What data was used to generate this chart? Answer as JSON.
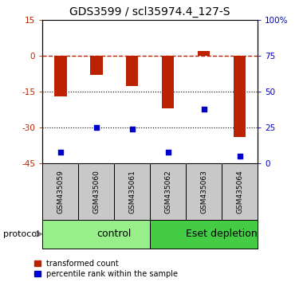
{
  "title": "GDS3599 / scl35974.4_127-S",
  "samples": [
    "GSM435059",
    "GSM435060",
    "GSM435061",
    "GSM435062",
    "GSM435063",
    "GSM435064"
  ],
  "red_values": [
    -17.0,
    -8.0,
    -12.5,
    -22.0,
    2.0,
    -34.0
  ],
  "blue_pct": [
    8,
    25,
    24,
    8,
    38,
    5
  ],
  "groups": [
    {
      "label": "control",
      "start": 0,
      "end": 3,
      "color": "#98EE88"
    },
    {
      "label": "Eset depletion",
      "start": 3,
      "end": 6,
      "color": "#44CC44"
    }
  ],
  "ylim_left": [
    -45,
    15
  ],
  "yticks_left": [
    15,
    0,
    -15,
    -30,
    -45
  ],
  "yticks_right_pct": [
    "100%",
    "75",
    "50",
    "25",
    "0"
  ],
  "yticks_right_vals": [
    15,
    0,
    -15,
    -30,
    -45
  ],
  "red_color": "#BB2200",
  "blue_color": "#0000CC",
  "legend_red": "transformed count",
  "legend_blue": "percentile rank within the sample",
  "bar_width": 0.35,
  "protocol_label": "protocol",
  "background_sample": "#C8C8C8",
  "title_fontsize": 10,
  "tick_fontsize": 7.5,
  "sample_fontsize": 6.5,
  "group_fontsize": 9,
  "legend_fontsize": 7
}
